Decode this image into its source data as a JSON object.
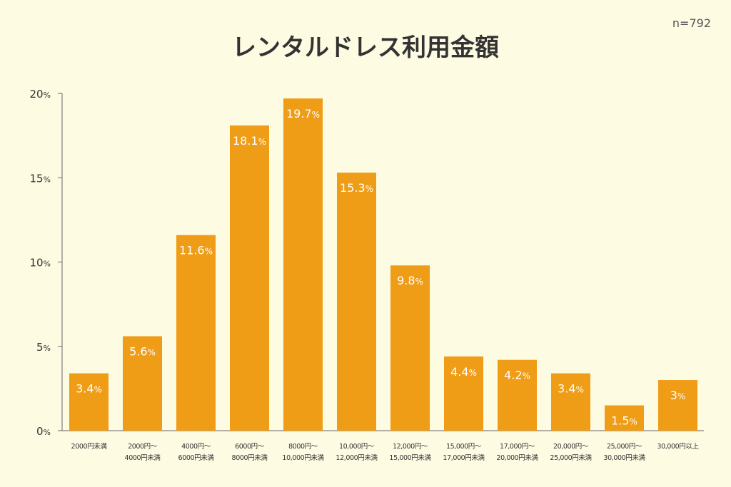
{
  "chart_data": {
    "type": "bar",
    "title": "レンタルドレス利用金額",
    "sample_size": "n=792",
    "ylim": [
      0,
      20
    ],
    "y_ticks": [
      0,
      5,
      10,
      15,
      20
    ],
    "y_tick_suffix": "%",
    "value_suffix": "%",
    "grid": false,
    "bar_color": "#ef9c16",
    "categories": [
      [
        "2000円未満"
      ],
      [
        "2000円〜",
        "4000円未満"
      ],
      [
        "4000円〜",
        "6000円未満"
      ],
      [
        "6000円〜",
        "8000円未満"
      ],
      [
        "8000円〜",
        "10,000円未満"
      ],
      [
        "10,000円〜",
        "12,000円未満"
      ],
      [
        "12,000円〜",
        "15,000円未満"
      ],
      [
        "15,000円〜",
        "17,000円未満"
      ],
      [
        "17,000円〜",
        "20,000円未満"
      ],
      [
        "20,000円〜",
        "25,000円未満"
      ],
      [
        "25,000円〜",
        "30,000円未満"
      ],
      [
        "30,000円以上"
      ]
    ],
    "values": [
      3.4,
      5.6,
      11.6,
      18.1,
      19.7,
      15.3,
      9.8,
      4.4,
      4.2,
      3.4,
      1.5,
      3
    ],
    "value_labels": [
      "3.4",
      "5.6",
      "11.6",
      "18.1",
      "19.7",
      "15.3",
      "9.8",
      "4.4",
      "4.2",
      "3.4",
      "1.5",
      "3"
    ]
  }
}
